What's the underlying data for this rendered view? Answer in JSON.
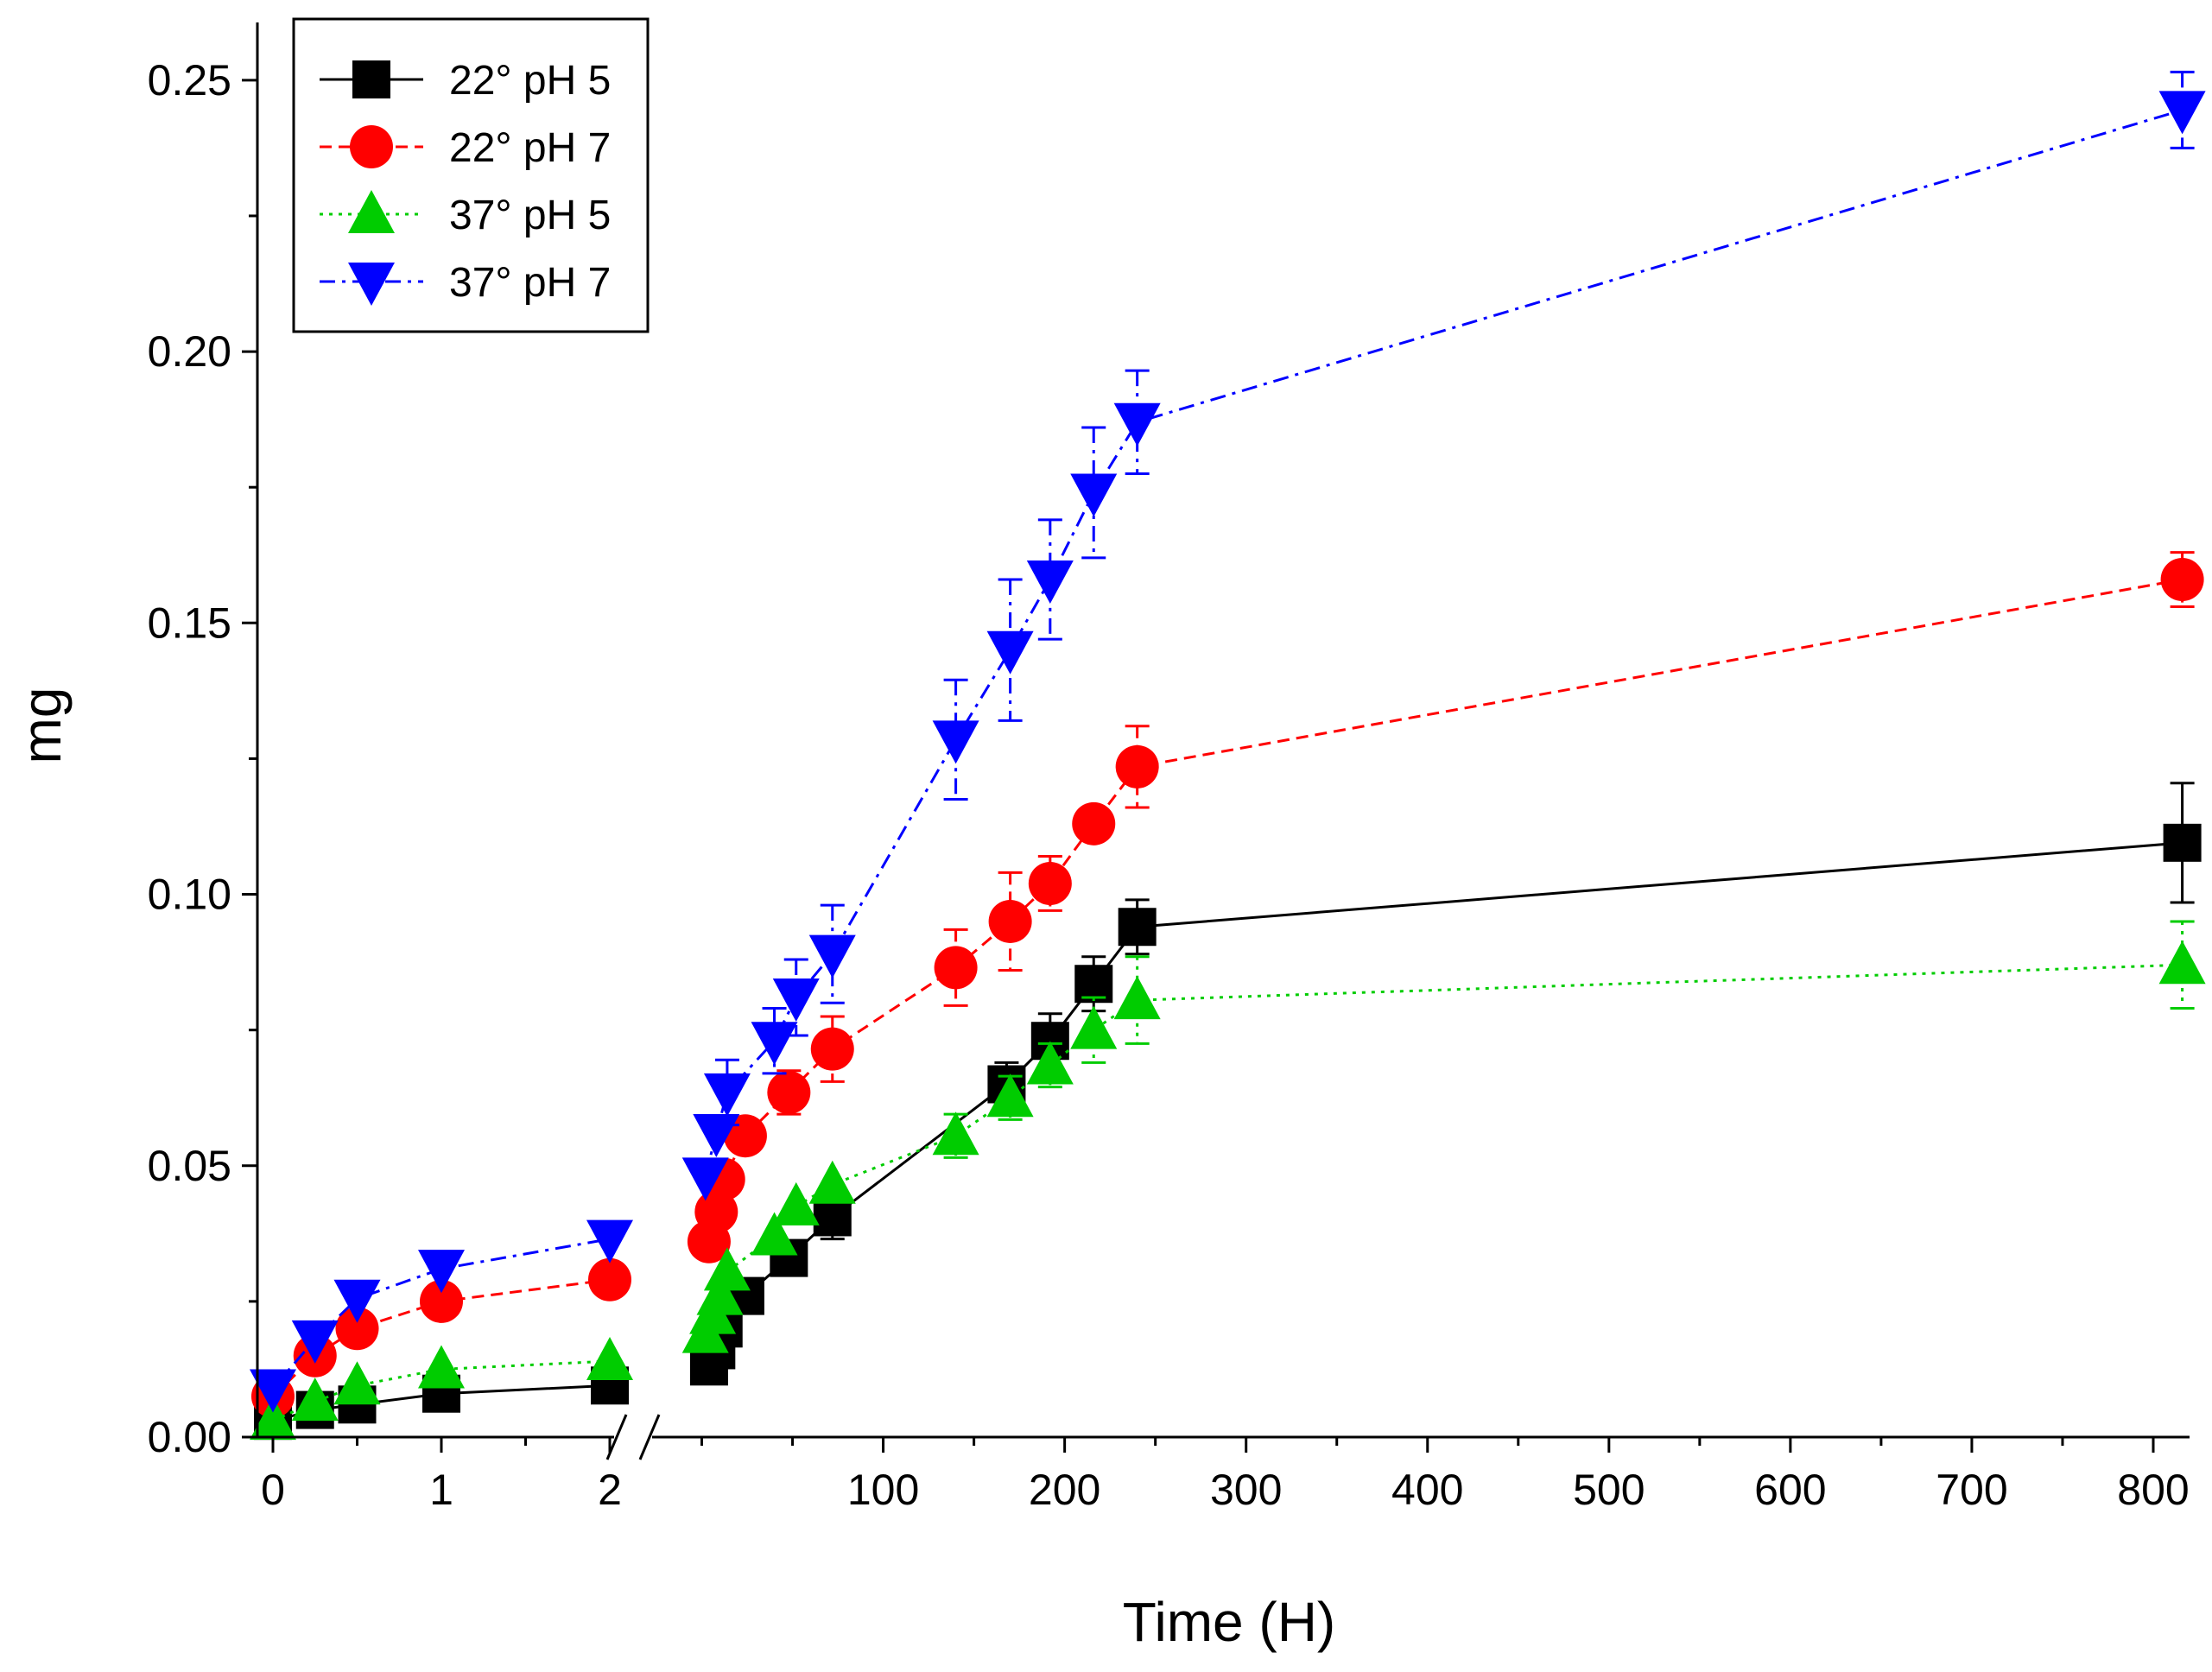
{
  "chart_data": {
    "type": "line",
    "title": "",
    "xlabel": "Time (H)",
    "ylabel": "mg",
    "ylim": [
      0,
      0.26
    ],
    "x_axis": {
      "broken": true,
      "segment1": {
        "range": [
          0,
          2
        ],
        "ticks": [
          "0",
          "1",
          "2"
        ]
      },
      "segment2": {
        "range": [
          -25,
          820
        ],
        "ticks": [
          "100",
          "200",
          "300",
          "400",
          "500",
          "600",
          "700",
          "800"
        ]
      }
    },
    "y_ticks": [
      "0.00",
      "0.05",
      "0.10",
      "0.15",
      "0.20",
      "0.25"
    ],
    "legend_position": "top-left",
    "series": [
      {
        "name": "22° pH 5",
        "legend_label": "22°",
        "legend_suffix": "pH 5",
        "color": "#000000",
        "dash": "solid",
        "marker": "square",
        "seg1": [
          [
            0,
            0.003
          ],
          [
            0.25,
            0.005
          ],
          [
            0.5,
            0.006
          ],
          [
            1,
            0.008
          ],
          [
            2,
            0.0095
          ]
        ],
        "seg2": [
          [
            4,
            0.013
          ],
          [
            8,
            0.016
          ],
          [
            12,
            0.02
          ],
          [
            24,
            0.026
          ],
          [
            48,
            0.033
          ],
          [
            72,
            0.0405
          ],
          [
            168,
            0.065
          ],
          [
            192,
            0.073
          ],
          [
            216,
            0.0835
          ],
          [
            240,
            0.094
          ],
          [
            816,
            0.1095
          ]
        ],
        "err2": [
          null,
          null,
          null,
          null,
          null,
          0.004,
          0.004,
          0.005,
          0.005,
          0.005,
          0.011
        ]
      },
      {
        "name": "22° pH 7",
        "legend_label": "22°",
        "legend_suffix": "pH 7",
        "color": "#ff0000",
        "dash": "dashed",
        "marker": "circle",
        "seg1": [
          [
            0,
            0.0075
          ],
          [
            0.25,
            0.015
          ],
          [
            0.5,
            0.02
          ],
          [
            1,
            0.025
          ],
          [
            2,
            0.029
          ]
        ],
        "seg2": [
          [
            4,
            0.036
          ],
          [
            8,
            0.0415
          ],
          [
            12,
            0.0475
          ],
          [
            24,
            0.0555
          ],
          [
            48,
            0.0635
          ],
          [
            72,
            0.0715
          ],
          [
            140,
            0.0865
          ],
          [
            170,
            0.095
          ],
          [
            192,
            0.102
          ],
          [
            216,
            0.113
          ],
          [
            240,
            0.1235
          ],
          [
            816,
            0.158
          ]
        ],
        "err2": [
          0.003,
          null,
          null,
          0.003,
          0.004,
          0.006,
          0.007,
          0.009,
          0.005,
          0.003,
          0.0075,
          0.005
        ]
      },
      {
        "name": "37° pH 5",
        "legend_label": "37°",
        "legend_suffix": "pH 5",
        "color": "#00cc00",
        "dash": "dotted",
        "marker": "triangle-up",
        "seg1": [
          [
            0,
            0.003
          ],
          [
            0.25,
            0.0065
          ],
          [
            0.5,
            0.0095
          ],
          [
            1,
            0.0125
          ],
          [
            2,
            0.014
          ]
        ],
        "seg2": [
          [
            2,
            0.019
          ],
          [
            6,
            0.0225
          ],
          [
            10,
            0.026
          ],
          [
            14,
            0.0305
          ],
          [
            40,
            0.037
          ],
          [
            52,
            0.0425
          ],
          [
            72,
            0.0465
          ],
          [
            140,
            0.0555
          ],
          [
            170,
            0.0625
          ],
          [
            192,
            0.0685
          ],
          [
            216,
            0.075
          ],
          [
            240,
            0.0805
          ],
          [
            816,
            0.087
          ]
        ],
        "err2": [
          null,
          null,
          null,
          null,
          null,
          null,
          null,
          0.004,
          0.004,
          0.004,
          0.006,
          0.008,
          0.008
        ]
      },
      {
        "name": "37° pH 7",
        "legend_label": "37°",
        "legend_suffix": "pH 7",
        "color": "#0000ff",
        "dash": "dashdot",
        "marker": "triangle-down",
        "seg1": [
          [
            0,
            0.009
          ],
          [
            0.25,
            0.018
          ],
          [
            0.5,
            0.0255
          ],
          [
            1,
            0.031
          ],
          [
            2,
            0.0365
          ]
        ],
        "seg2": [
          [
            2,
            0.048
          ],
          [
            8,
            0.056
          ],
          [
            14,
            0.0635
          ],
          [
            40,
            0.073
          ],
          [
            52,
            0.081
          ],
          [
            72,
            0.089
          ],
          [
            140,
            0.1285
          ],
          [
            170,
            0.145
          ],
          [
            192,
            0.158
          ],
          [
            216,
            0.174
          ],
          [
            240,
            0.187
          ],
          [
            816,
            0.2445
          ]
        ],
        "err2": [
          null,
          null,
          0.006,
          0.006,
          0.007,
          0.009,
          0.011,
          0.013,
          0.011,
          0.012,
          0.0095,
          0.007
        ]
      }
    ]
  }
}
